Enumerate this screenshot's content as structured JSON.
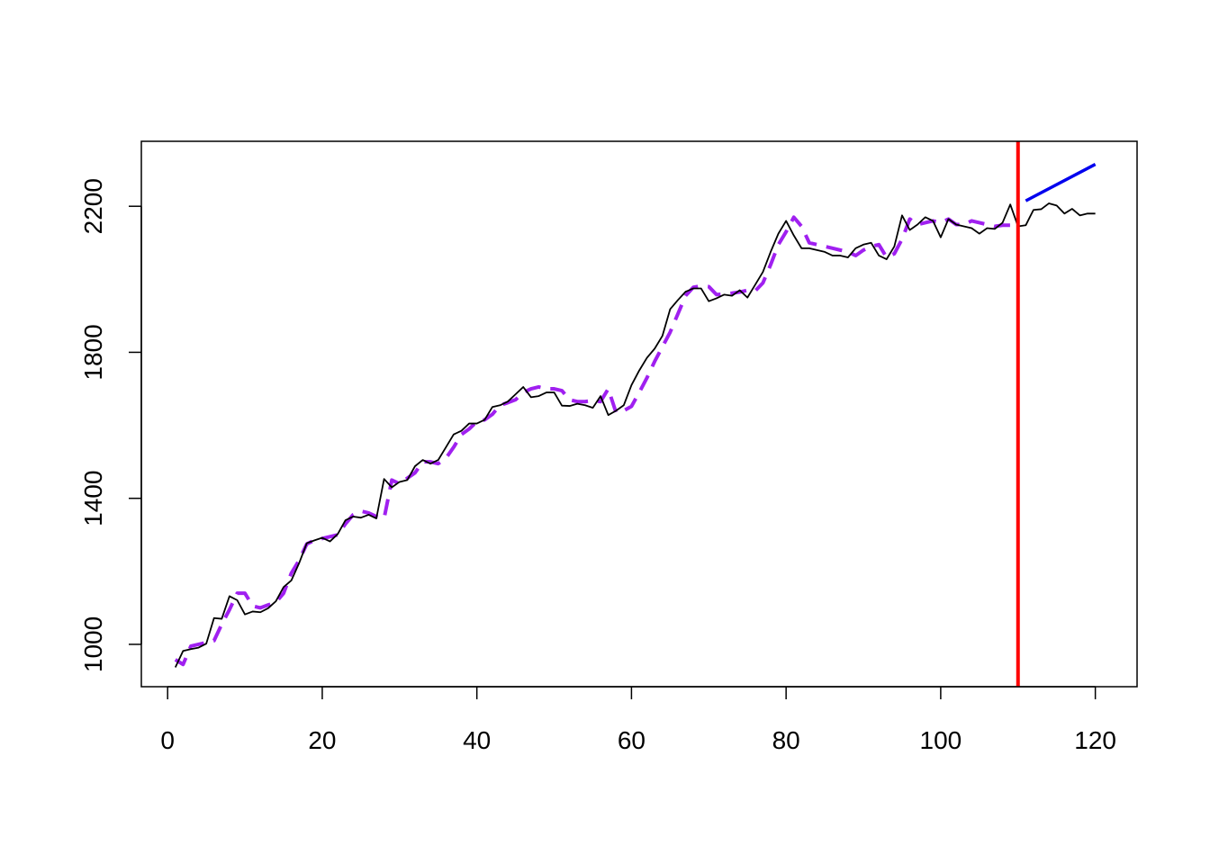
{
  "chart_data": {
    "type": "line",
    "title": "",
    "xlabel": "",
    "ylabel": "",
    "xlim": [
      -3.4,
      125.4
    ],
    "ylim": [
      884,
      2378
    ],
    "x_ticks": [
      0,
      20,
      40,
      60,
      80,
      100,
      120
    ],
    "x_tick_labels": [
      "0",
      "20",
      "40",
      "60",
      "80",
      "100",
      "120"
    ],
    "y_ticks": [
      1000,
      1400,
      1800,
      2200
    ],
    "y_tick_labels": [
      "1000",
      "1400",
      "1800",
      "2200"
    ],
    "grid": false,
    "vline": {
      "x": 110,
      "color": "#ff0000"
    },
    "series": [
      {
        "style": "solid",
        "color": "#000000",
        "x": [
          1,
          2,
          3,
          4,
          5,
          6,
          7,
          8,
          9,
          10,
          11,
          12,
          13,
          14,
          15,
          16,
          17,
          18,
          19,
          20,
          21,
          22,
          23,
          24,
          25,
          26,
          27,
          28,
          29,
          30,
          31,
          32,
          33,
          34,
          35,
          36,
          37,
          38,
          39,
          40,
          41,
          42,
          43,
          44,
          45,
          46,
          47,
          48,
          49,
          50,
          51,
          52,
          53,
          54,
          55,
          56,
          57,
          58,
          59,
          60,
          61,
          62,
          63,
          64,
          65,
          66,
          67,
          68,
          69,
          70,
          71,
          72,
          73,
          74,
          75,
          76,
          77,
          78,
          79,
          80,
          81,
          82,
          83,
          84,
          85,
          86,
          87,
          88,
          89,
          90,
          91,
          92,
          93,
          94,
          95,
          96,
          97,
          98,
          99,
          100,
          101,
          102,
          103,
          104,
          105,
          106,
          107,
          108,
          109,
          110,
          111,
          112,
          113,
          114,
          115,
          116,
          117,
          118,
          119,
          120
        ],
        "y": [
          937,
          982,
          987,
          991,
          1002,
          1072,
          1070,
          1132,
          1121,
          1082,
          1090,
          1088,
          1099,
          1118,
          1157,
          1175,
          1222,
          1277,
          1285,
          1292,
          1282,
          1302,
          1340,
          1350,
          1347,
          1355,
          1345,
          1453,
          1430,
          1445,
          1450,
          1488,
          1505,
          1495,
          1505,
          1540,
          1575,
          1585,
          1605,
          1605,
          1615,
          1650,
          1655,
          1665,
          1685,
          1705,
          1677,
          1680,
          1690,
          1690,
          1654,
          1653,
          1659,
          1655,
          1648,
          1680,
          1628,
          1640,
          1655,
          1710,
          1750,
          1785,
          1810,
          1845,
          1918,
          1943,
          1966,
          1975,
          1975,
          1940,
          1948,
          1958,
          1955,
          1970,
          1950,
          1985,
          2020,
          2075,
          2125,
          2160,
          2120,
          2085,
          2085,
          2080,
          2075,
          2065,
          2065,
          2060,
          2085,
          2095,
          2100,
          2065,
          2055,
          2090,
          2175,
          2135,
          2150,
          2170,
          2160,
          2115,
          2165,
          2150,
          2145,
          2140,
          2125,
          2140,
          2138,
          2155,
          2205,
          2145,
          2148,
          2190,
          2192,
          2208,
          2202,
          2180,
          2193,
          2175,
          2180,
          2180
        ]
      },
      {
        "style": "dashed",
        "color": "#a020f0",
        "x": [
          1,
          2,
          3,
          4,
          5,
          6,
          7,
          8,
          9,
          10,
          11,
          12,
          13,
          14,
          15,
          16,
          17,
          18,
          19,
          20,
          21,
          22,
          23,
          24,
          25,
          26,
          27,
          28,
          29,
          30,
          31,
          32,
          33,
          34,
          35,
          36,
          37,
          38,
          39,
          40,
          41,
          42,
          43,
          44,
          45,
          46,
          47,
          48,
          49,
          50,
          51,
          52,
          53,
          54,
          55,
          56,
          57,
          58,
          59,
          60,
          61,
          62,
          63,
          64,
          65,
          66,
          67,
          68,
          69,
          70,
          71,
          72,
          73,
          74,
          75,
          76,
          77,
          78,
          79,
          80,
          81,
          82,
          83,
          84,
          85,
          86,
          87,
          88,
          89,
          90,
          91,
          92,
          93,
          94,
          95,
          96,
          97,
          98,
          99,
          100,
          101,
          102,
          103,
          104,
          105,
          106,
          107,
          108,
          109,
          110
        ],
        "y": [
          958,
          945,
          995,
          1000,
          1005,
          1010,
          1055,
          1095,
          1140,
          1140,
          1105,
          1100,
          1108,
          1115,
          1140,
          1195,
          1230,
          1275,
          1285,
          1290,
          1295,
          1300,
          1330,
          1355,
          1365,
          1360,
          1350,
          1345,
          1450,
          1440,
          1455,
          1470,
          1500,
          1500,
          1495,
          1510,
          1540,
          1575,
          1590,
          1610,
          1615,
          1630,
          1655,
          1662,
          1670,
          1690,
          1700,
          1705,
          1700,
          1700,
          1695,
          1670,
          1665,
          1665,
          1668,
          1665,
          1700,
          1635,
          1640,
          1652,
          1690,
          1730,
          1775,
          1815,
          1855,
          1905,
          1955,
          1978,
          1982,
          1980,
          1958,
          1960,
          1962,
          1965,
          1970,
          1968,
          1990,
          2040,
          2095,
          2130,
          2170,
          2145,
          2100,
          2095,
          2090,
          2085,
          2080,
          2075,
          2065,
          2080,
          2090,
          2095,
          2060,
          2070,
          2110,
          2165,
          2150,
          2155,
          2160,
          2155,
          2165,
          2150,
          2150,
          2160,
          2155,
          2150,
          2145,
          2148,
          2148,
          2155
        ]
      },
      {
        "style": "solid",
        "color": "#0000ee",
        "x": [
          111,
          120
        ],
        "y": [
          2215,
          2315
        ]
      }
    ]
  }
}
